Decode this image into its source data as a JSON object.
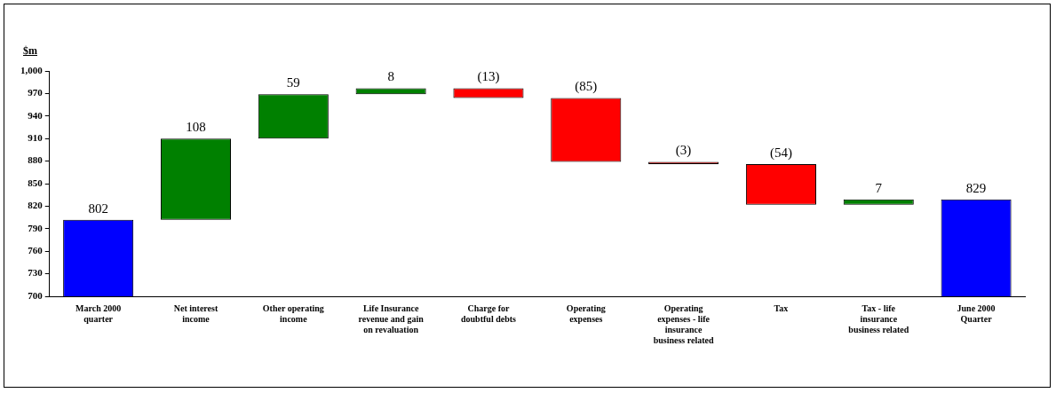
{
  "chart_data": {
    "type": "bar",
    "ylabel": "$m",
    "categories": [
      "March 2000 quarter",
      "Net interest income",
      "Other operating income",
      "Life Insurance revenue and gain on revaluation",
      "Charge for doubtful debts",
      "Operating expenses",
      "Operating expenses - life insurance business related",
      "Tax",
      "Tax - life insurance business related",
      "June 2000 Quarter"
    ],
    "values": [
      802,
      108,
      59,
      8,
      -13,
      -85,
      -3,
      -54,
      7,
      829
    ],
    "base": [
      null,
      802,
      910,
      969,
      977,
      964,
      879,
      876,
      822,
      null
    ],
    "colors": [
      "#0000ff",
      "#008000",
      "#008000",
      "#008000",
      "#ff0000",
      "#ff0000",
      "#ff0000",
      "#ff0000",
      "#008000",
      "#0000ff"
    ],
    "value_labels": [
      "802",
      "108",
      "59",
      "8",
      "(13)",
      "(85)",
      "(3)",
      "(54)",
      "7",
      "829"
    ],
    "ylim": [
      700,
      1000
    ],
    "yticks": [
      700,
      730,
      760,
      790,
      820,
      850,
      880,
      910,
      940,
      970,
      {
        "value": 1000,
        "label": "1,000"
      }
    ],
    "grid": false,
    "legend": false
  }
}
